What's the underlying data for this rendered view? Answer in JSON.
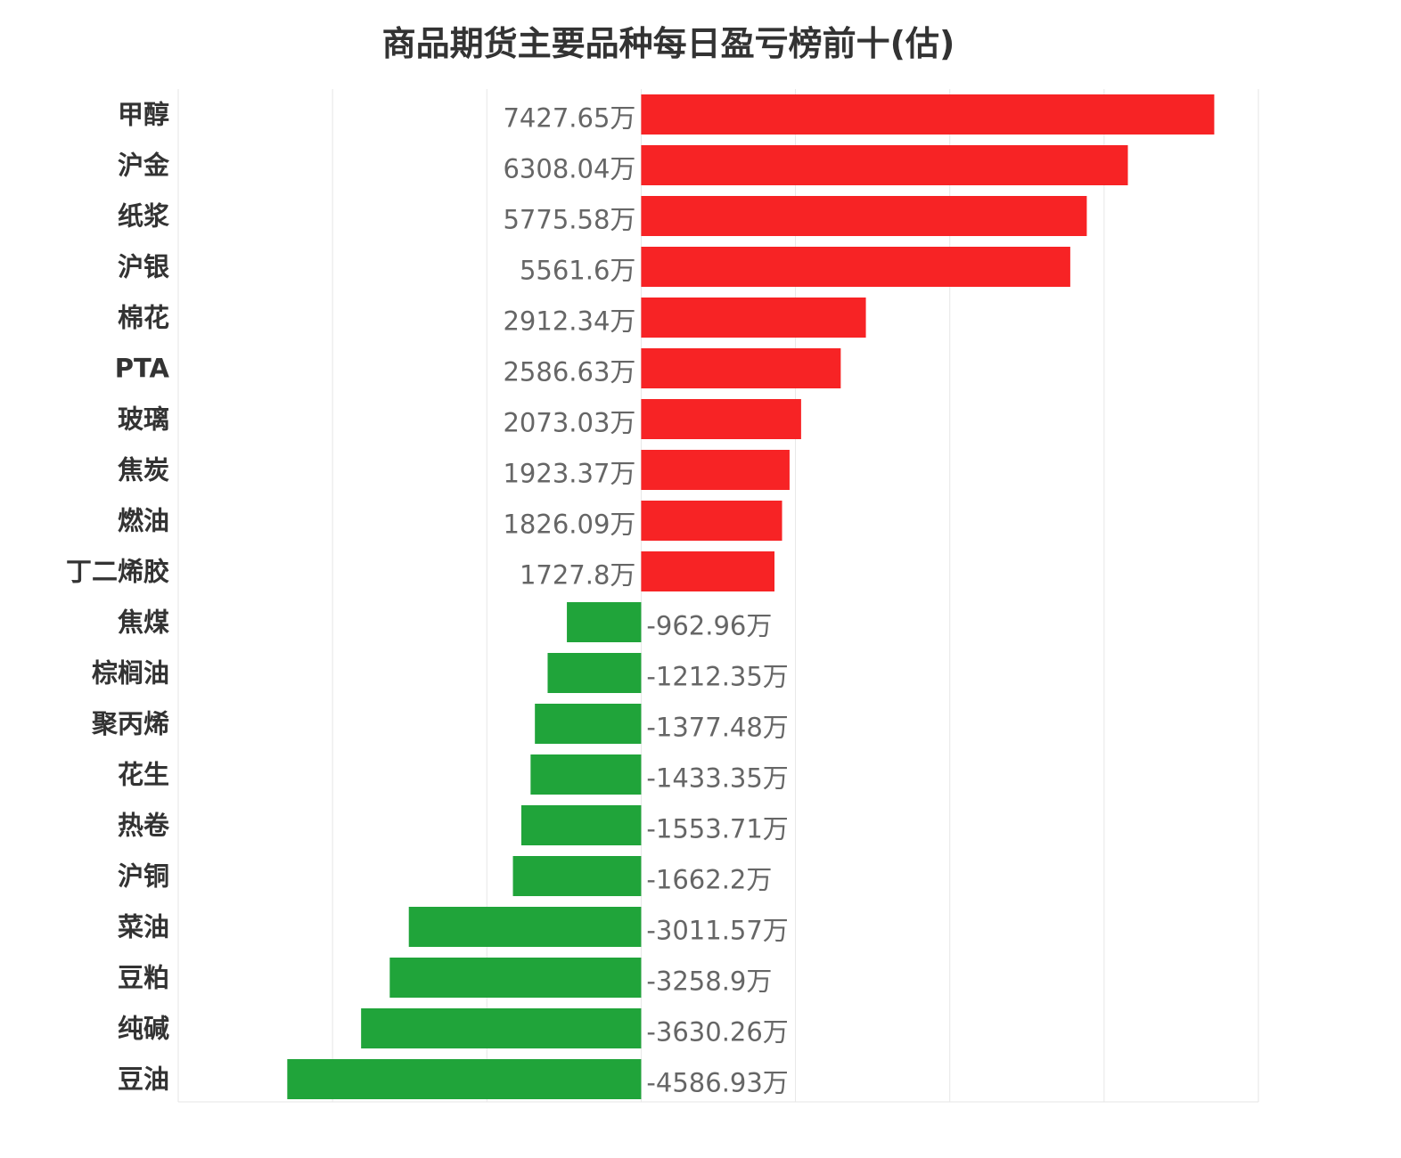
{
  "chart_data": {
    "type": "bar",
    "orientation": "horizontal",
    "title": "商品期货主要品种每日盈亏榜前十(估)",
    "unit_suffix": "万",
    "categories": [
      "甲醇",
      "沪金",
      "纸浆",
      "沪银",
      "棉花",
      "PTA",
      "玻璃",
      "焦炭",
      "燃油",
      "丁二烯胶",
      "焦煤",
      "棕榈油",
      "聚丙烯",
      "花生",
      "热卷",
      "沪铜",
      "菜油",
      "豆粕",
      "纯碱",
      "豆油"
    ],
    "values": [
      7427.65,
      6308.04,
      5775.58,
      5561.6,
      2912.34,
      2586.63,
      2073.03,
      1923.37,
      1826.09,
      1727.8,
      -962.96,
      -1212.35,
      -1377.48,
      -1433.35,
      -1553.71,
      -1662.2,
      -3011.57,
      -3258.9,
      -3630.26,
      -4586.93
    ],
    "value_labels": [
      "7427.65万",
      "6308.04万",
      "5775.58万",
      "5561.6万",
      "2912.34万",
      "2586.63万",
      "2073.03万",
      "1923.37万",
      "1826.09万",
      "1727.8万",
      "-962.96万",
      "-1212.35万",
      "-1377.48万",
      "-1433.35万",
      "-1553.71万",
      "-1662.2万",
      "-3011.57万",
      "-3258.9万",
      "-3630.26万",
      "-4586.93万"
    ],
    "xlim": [
      -6000,
      8000
    ],
    "grid_step": 2000,
    "grid": true,
    "legend": "none",
    "colors": {
      "positive": "#f72325",
      "negative": "#20a43a",
      "grid": "#e6e6e6"
    }
  }
}
